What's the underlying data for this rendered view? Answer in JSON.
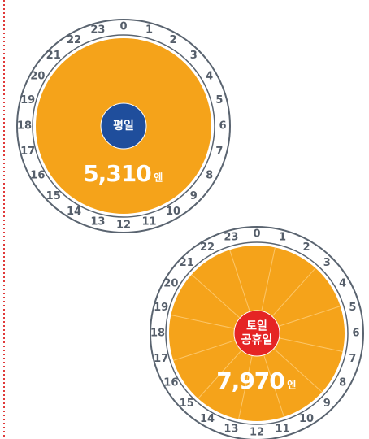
{
  "clocks": [
    {
      "badge": [
        "평일"
      ],
      "price": "5,310",
      "unit": "엔",
      "hours": [
        0,
        1,
        2,
        3,
        4,
        5,
        6,
        7,
        8,
        9,
        10,
        11,
        12,
        13,
        14,
        15,
        16,
        17,
        18,
        19,
        20,
        21,
        22,
        23
      ]
    },
    {
      "badge": [
        "토일",
        "공휴일"
      ],
      "price": "7,970",
      "unit": "엔",
      "hours": [
        0,
        1,
        2,
        3,
        4,
        5,
        6,
        7,
        8,
        9,
        10,
        11,
        12,
        13,
        14,
        15,
        16,
        17,
        18,
        19,
        20,
        21,
        22,
        23
      ]
    }
  ]
}
